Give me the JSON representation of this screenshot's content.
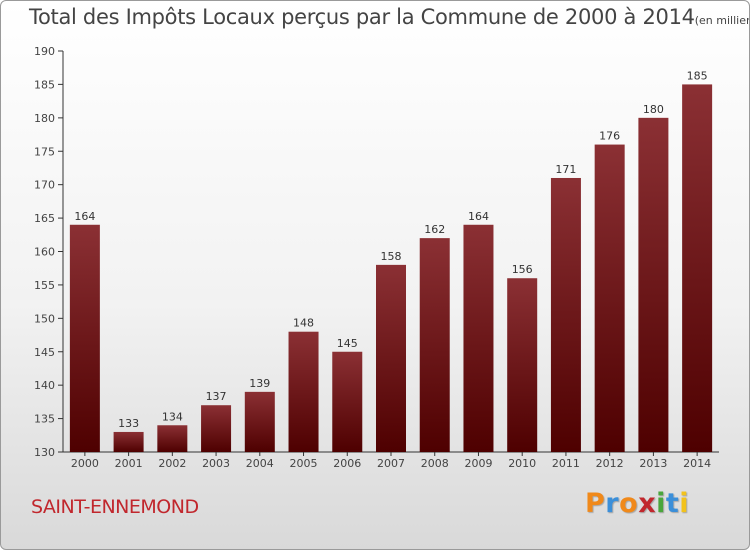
{
  "title": "Total des Impôts Locaux perçus par la Commune de 2000 à 2014",
  "unit_label": "(en milliers d'€)",
  "commune": "SAINT-ENNEMOND",
  "brand": "Proxiti",
  "colors": {
    "bar_top": "#8b3034",
    "bar_bottom": "#4e0000",
    "commune_text": "#c1272d",
    "axis": "#333333"
  },
  "chart_data": {
    "type": "bar",
    "title": "Total des Impôts Locaux perçus par la Commune de 2000 à 2014",
    "ylabel": "en milliers d'€",
    "xlabel": "",
    "categories": [
      "2000",
      "2001",
      "2002",
      "2003",
      "2004",
      "2005",
      "2006",
      "2007",
      "2008",
      "2009",
      "2010",
      "2011",
      "2012",
      "2013",
      "2014"
    ],
    "values": [
      164,
      133,
      134,
      137,
      139,
      148,
      145,
      158,
      162,
      164,
      156,
      171,
      176,
      180,
      185
    ],
    "ylim": [
      130,
      190
    ],
    "yticks": [
      130,
      135,
      140,
      145,
      150,
      155,
      160,
      165,
      170,
      175,
      180,
      185,
      190
    ],
    "grid": false,
    "data_labels": true
  }
}
